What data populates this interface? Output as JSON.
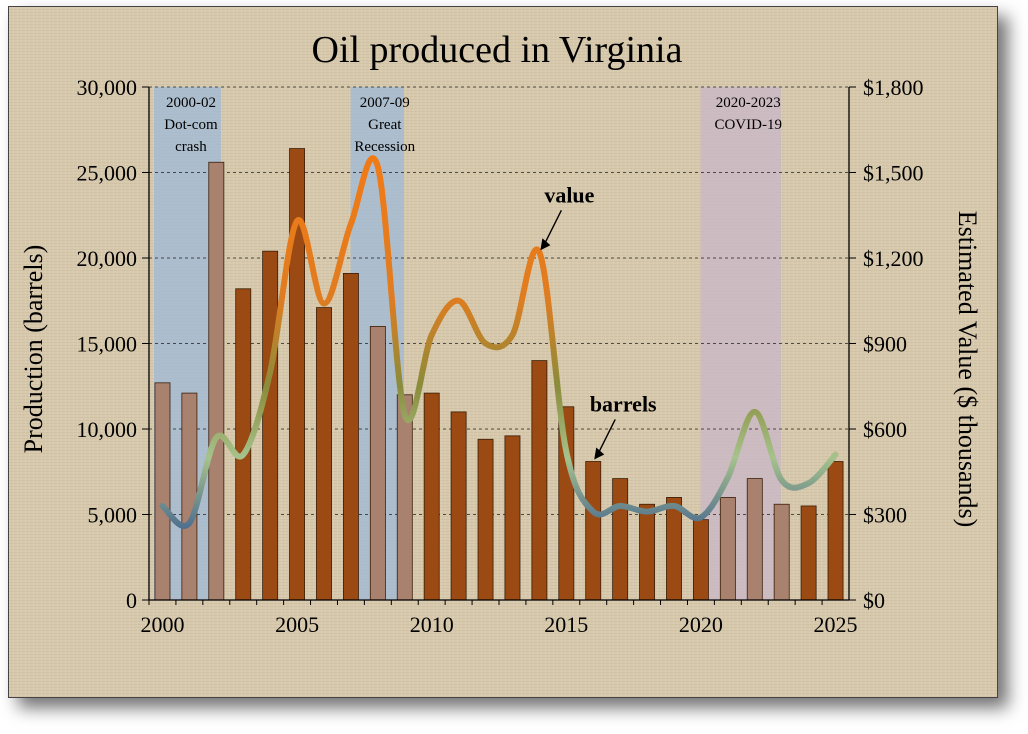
{
  "chart_data": {
    "type": "bar",
    "title": "Oil produced in Virginia",
    "x": [
      2000,
      2001,
      2002,
      2003,
      2004,
      2005,
      2006,
      2007,
      2008,
      2009,
      2010,
      2011,
      2012,
      2013,
      2014,
      2015,
      2016,
      2017,
      2018,
      2019,
      2020,
      2021,
      2022,
      2023,
      2024,
      2025
    ],
    "xticks": [
      "2000",
      "2005",
      "2010",
      "2015",
      "2020",
      "2025"
    ],
    "ylabel_left": "Production (barrels)",
    "ylabel_right": "Estimated Value ($ thousands)",
    "ylim_left": [
      0,
      30000
    ],
    "ylim_right": [
      0,
      1800
    ],
    "yticks_left": [
      "0",
      "5,000",
      "10,000",
      "15,000",
      "20,000",
      "25,000",
      "30,000"
    ],
    "yticks_right": [
      "$0",
      "$300",
      "$600",
      "$900",
      "$1,200",
      "$1,500",
      "$1,800"
    ],
    "grid": "horizontal dashed",
    "series": [
      {
        "name": "barrels",
        "axis": "left",
        "chart_type": "bar",
        "color": "#9a4a12",
        "values": [
          12700,
          12100,
          25600,
          18200,
          20400,
          26400,
          17100,
          19100,
          16000,
          12000,
          12100,
          11000,
          9400,
          9600,
          14000,
          11300,
          8100,
          7100,
          5600,
          6000,
          4700,
          6000,
          7100,
          5600,
          5500,
          8100
        ]
      },
      {
        "name": "value",
        "axis": "right",
        "chart_type": "line",
        "values": [
          330,
          270,
          570,
          510,
          800,
          1330,
          1040,
          1320,
          1520,
          650,
          930,
          1050,
          900,
          930,
          1220,
          520,
          310,
          330,
          310,
          330,
          290,
          430,
          660,
          420,
          410,
          510
        ]
      }
    ],
    "shaded_periods": [
      {
        "start": 2000,
        "end": 2002.3,
        "label_lines": [
          "2000-02",
          "Dot-com",
          "crash"
        ],
        "color": "#9db8d8"
      },
      {
        "start": 2007.3,
        "end": 2009.1,
        "label_lines": [
          "2007-09",
          "Great",
          "Recession"
        ],
        "color": "#9db8d8"
      },
      {
        "start": 2020.3,
        "end": 2023.1,
        "label_lines": [
          "2020-2023",
          "COVID-19"
        ],
        "color": "#c8b5c8"
      }
    ],
    "annotations": [
      {
        "text": "value",
        "series": "value",
        "year": 2014
      },
      {
        "text": "barrels",
        "series": "barrels",
        "year": 2016
      }
    ]
  }
}
